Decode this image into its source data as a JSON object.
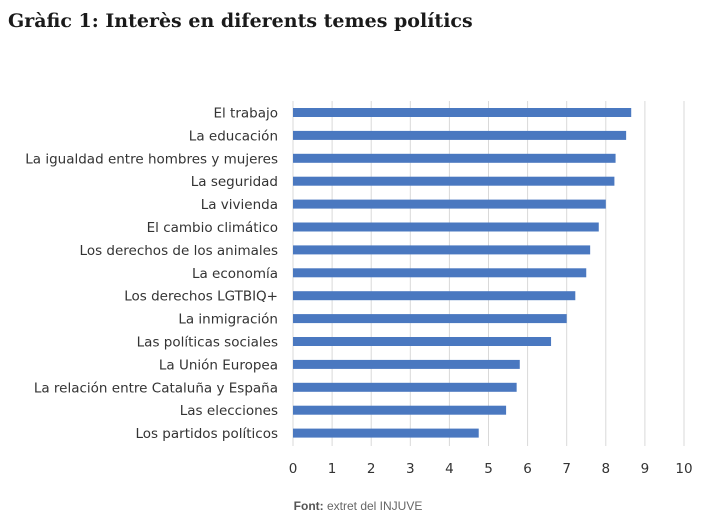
{
  "chart_data": {
    "type": "bar",
    "orientation": "horizontal",
    "title": "Gràfic 1: Interès en diferents temes polítics",
    "categories": [
      "El trabajo",
      "La educación",
      "La igualdad entre hombres y mujeres",
      "La seguridad",
      "La vivienda",
      "El cambio climático",
      "Los derechos de los animales",
      "La economía",
      "Los derechos LGTBIQ+",
      "La inmigración",
      "Las políticas sociales",
      "La Unión Europea",
      "La relación entre Cataluña y España",
      "Las elecciones",
      "Los partidos políticos"
    ],
    "values": [
      8.65,
      8.52,
      8.25,
      8.22,
      8.0,
      7.82,
      7.6,
      7.5,
      7.22,
      7.0,
      6.6,
      5.8,
      5.72,
      5.45,
      4.75
    ],
    "xlim": [
      0,
      10
    ],
    "xticks": [
      0,
      1,
      2,
      3,
      4,
      5,
      6,
      7,
      8,
      9,
      10
    ],
    "grid": "vertical",
    "bar_color": "#4a78c0",
    "grid_color": "#d9d9d9",
    "legend": "none"
  },
  "source": {
    "prefix": "Font:",
    "text": " extret del INJUVE"
  }
}
